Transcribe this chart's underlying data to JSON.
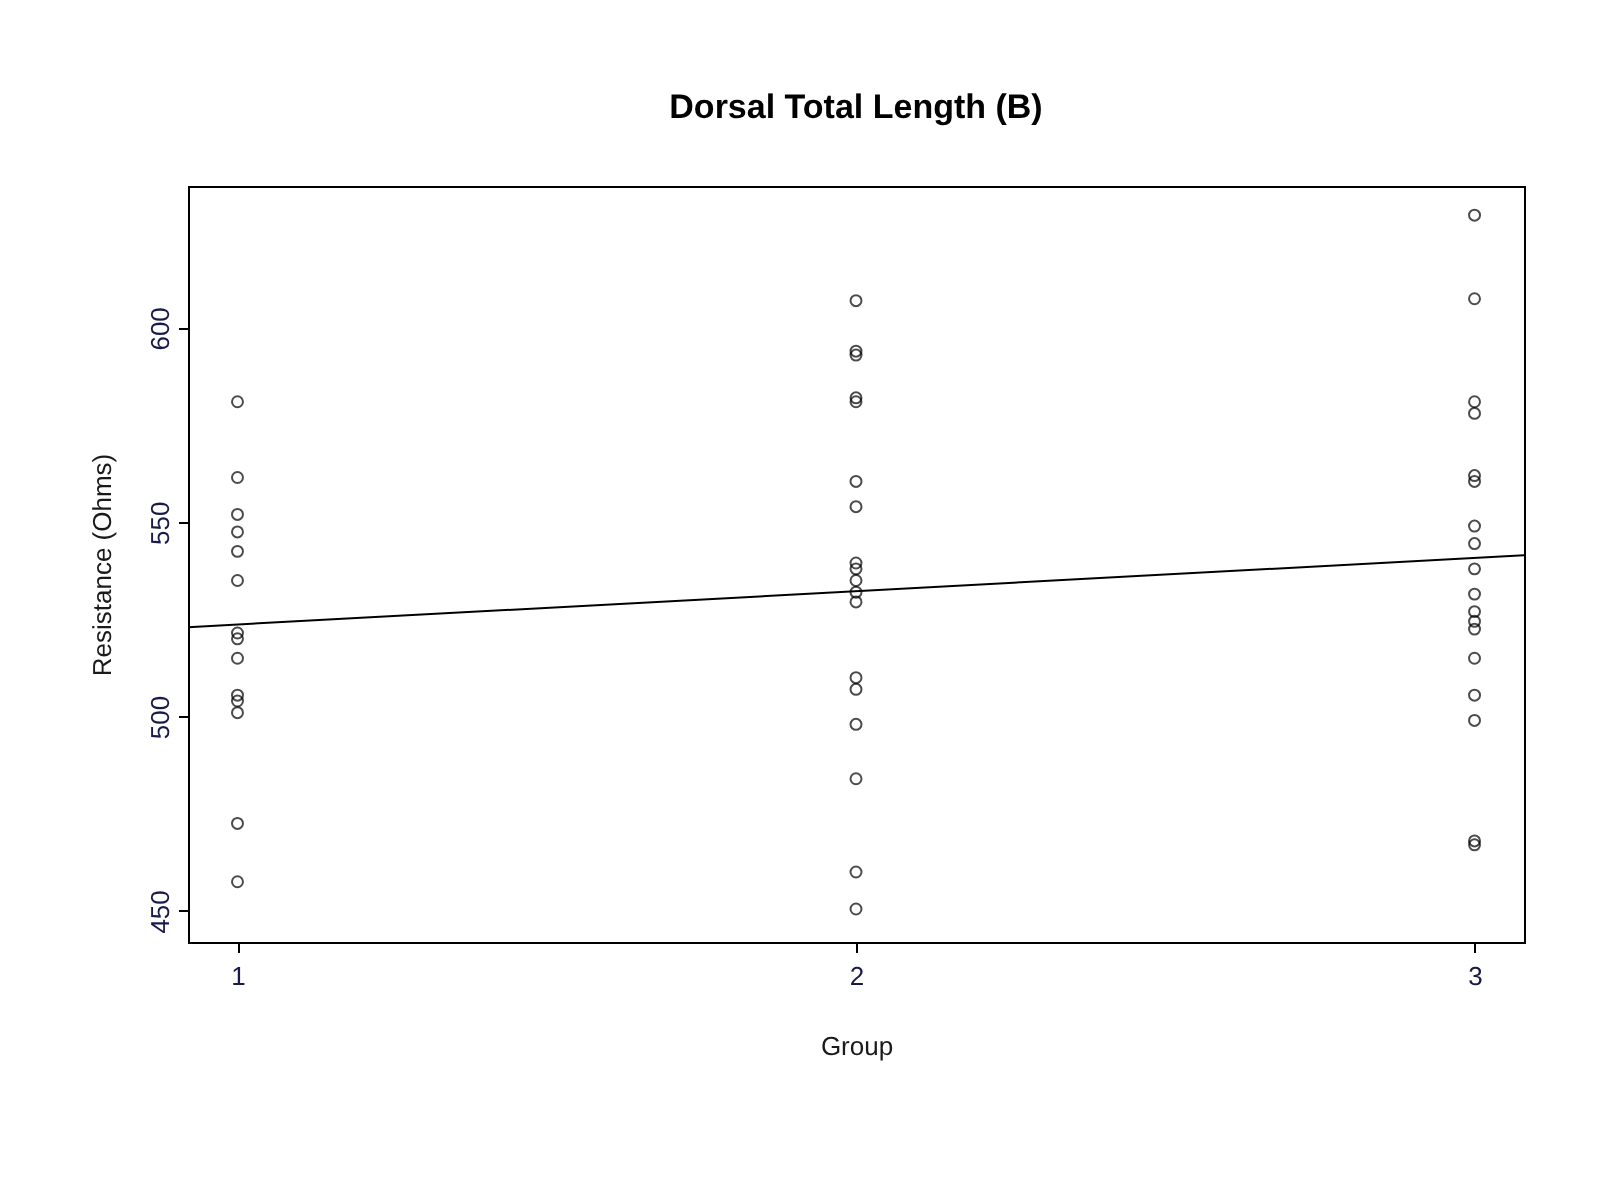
{
  "chart_data": {
    "type": "scatter",
    "title": "Dorsal Total Length (B)",
    "xlabel": "Group",
    "ylabel": "Resistance (Ohms)",
    "xlim": [
      0.92,
      3.08
    ],
    "xticks": [
      1,
      2,
      3
    ],
    "ylim": [
      442,
      636.5
    ],
    "yticks": [
      450,
      500,
      550,
      600
    ],
    "grid": false,
    "series": [
      {
        "color": "#000000",
        "marker": "circle",
        "x": [
          1,
          1,
          1,
          1,
          1,
          1,
          1,
          1,
          1,
          1,
          1,
          1,
          1,
          1,
          2,
          2,
          2,
          2,
          2,
          2,
          2,
          2,
          2,
          2,
          2,
          2,
          2,
          2,
          2,
          2,
          2,
          2,
          3,
          3,
          3,
          3,
          3,
          3,
          3,
          3,
          3,
          3,
          3,
          3,
          3,
          3,
          3,
          3,
          3,
          3
        ],
        "values": [
          581,
          561.5,
          552,
          547.5,
          542.5,
          535,
          521.5,
          520,
          515,
          505.5,
          504,
          501,
          472.5,
          457.5,
          607,
          594,
          593,
          582,
          581,
          560.5,
          554,
          539.5,
          538,
          535,
          532,
          529.5,
          510,
          507,
          498,
          484,
          460,
          450.5,
          629,
          607.5,
          581,
          578,
          562,
          560.5,
          549,
          544.5,
          538,
          531.5,
          527,
          524.5,
          522.5,
          515,
          505.5,
          499,
          468,
          467
        ]
      },
      {
        "type": "line",
        "color": "#000000",
        "line_style": "solid",
        "x": [
          0.92,
          3.08
        ],
        "values": [
          523,
          541.5
        ]
      }
    ]
  }
}
